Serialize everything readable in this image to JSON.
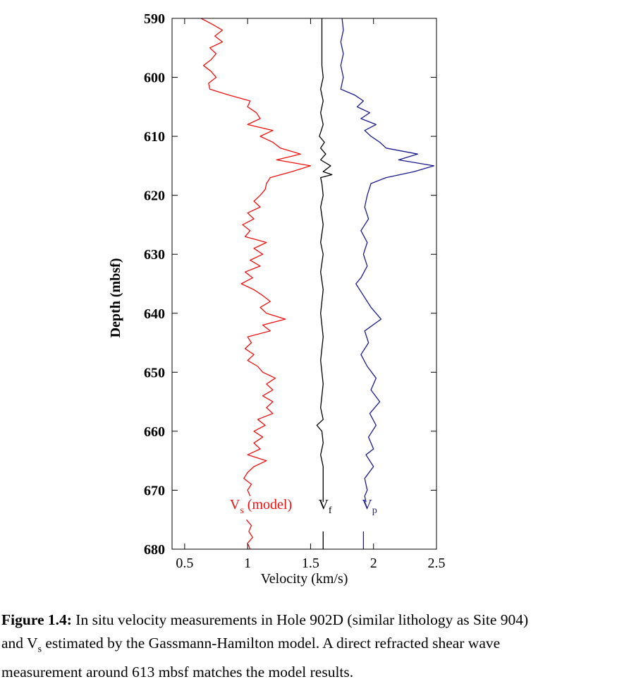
{
  "chart_data": {
    "type": "line",
    "xlabel": "Velocity (km/s)",
    "ylabel": "Depth (mbsf)",
    "xlim": [
      0.4,
      2.5
    ],
    "ylim": [
      590,
      680
    ],
    "y_inverted": true,
    "x_ticks": [
      "0.5",
      "1",
      "1.5",
      "2",
      "2.5"
    ],
    "y_ticks": [
      "590",
      "600",
      "610",
      "620",
      "630",
      "640",
      "650",
      "660",
      "670",
      "680"
    ],
    "grid": false,
    "series": [
      {
        "name": "Vs (model)",
        "label_main": "V",
        "label_sub": "s",
        "label_suffix": " (model)",
        "color": "#ee1111",
        "points": [
          [
            0.63,
            590
          ],
          [
            0.72,
            591
          ],
          [
            0.8,
            592
          ],
          [
            0.74,
            593
          ],
          [
            0.8,
            594
          ],
          [
            0.7,
            595
          ],
          [
            0.75,
            596
          ],
          [
            0.71,
            597
          ],
          [
            0.65,
            598
          ],
          [
            0.71,
            599
          ],
          [
            0.75,
            600
          ],
          [
            0.69,
            601
          ],
          [
            0.7,
            602
          ],
          [
            0.85,
            603
          ],
          [
            1.02,
            604
          ],
          [
            1.0,
            605
          ],
          [
            1.07,
            606
          ],
          [
            1.1,
            607
          ],
          [
            1.0,
            608
          ],
          [
            1.2,
            609
          ],
          [
            1.1,
            610
          ],
          [
            1.2,
            611
          ],
          [
            1.26,
            612
          ],
          [
            1.42,
            613
          ],
          [
            1.23,
            614
          ],
          [
            1.5,
            615
          ],
          [
            1.35,
            616
          ],
          [
            1.18,
            617
          ],
          [
            1.15,
            618
          ],
          [
            1.14,
            619
          ],
          [
            1.1,
            620
          ],
          [
            1.05,
            621
          ],
          [
            1.1,
            622
          ],
          [
            1.0,
            623
          ],
          [
            1.05,
            624
          ],
          [
            0.96,
            625
          ],
          [
            1.02,
            626
          ],
          [
            0.98,
            627
          ],
          [
            1.15,
            628
          ],
          [
            1.05,
            629
          ],
          [
            1.12,
            630
          ],
          [
            1.02,
            631
          ],
          [
            1.1,
            632
          ],
          [
            0.98,
            633
          ],
          [
            1.04,
            634
          ],
          [
            0.95,
            635
          ],
          [
            1.05,
            636
          ],
          [
            1.12,
            637
          ],
          [
            1.18,
            638
          ],
          [
            1.1,
            639
          ],
          [
            1.15,
            640
          ],
          [
            1.3,
            641
          ],
          [
            1.12,
            642
          ],
          [
            1.18,
            643
          ],
          [
            1.0,
            644
          ],
          [
            1.03,
            645
          ],
          [
            0.98,
            646
          ],
          [
            1.05,
            647
          ],
          [
            1.0,
            648
          ],
          [
            1.08,
            649
          ],
          [
            1.12,
            650
          ],
          [
            1.22,
            651
          ],
          [
            1.15,
            652
          ],
          [
            1.2,
            653
          ],
          [
            1.12,
            654
          ],
          [
            1.2,
            655
          ],
          [
            1.15,
            656
          ],
          [
            1.2,
            657
          ],
          [
            1.08,
            658
          ],
          [
            1.14,
            659
          ],
          [
            1.05,
            660
          ],
          [
            1.12,
            661
          ],
          [
            1.05,
            662
          ],
          [
            1.1,
            663
          ],
          [
            1.0,
            664
          ],
          [
            1.15,
            665
          ],
          [
            1.05,
            666
          ],
          [
            1.0,
            667
          ],
          [
            0.97,
            668
          ],
          [
            1.03,
            669
          ],
          [
            1.0,
            670
          ],
          [
            1.02,
            671
          ],
          [
            null,
            672
          ],
          [
            0.99,
            675
          ],
          [
            1.03,
            676
          ],
          [
            1.01,
            677
          ],
          [
            1.04,
            678
          ],
          [
            1.0,
            679
          ],
          [
            1.02,
            680
          ]
        ]
      },
      {
        "name": "Vf",
        "label_main": "V",
        "label_sub": "f",
        "label_suffix": "",
        "color": "#000000",
        "points": [
          [
            1.59,
            590
          ],
          [
            1.59,
            598
          ],
          [
            1.6,
            600
          ],
          [
            1.58,
            602
          ],
          [
            1.6,
            604
          ],
          [
            1.58,
            606
          ],
          [
            1.6,
            608
          ],
          [
            1.57,
            610
          ],
          [
            1.61,
            611
          ],
          [
            1.58,
            612
          ],
          [
            1.62,
            613
          ],
          [
            1.58,
            614
          ],
          [
            1.66,
            615
          ],
          [
            1.6,
            616
          ],
          [
            1.67,
            616.5
          ],
          [
            1.58,
            617
          ],
          [
            1.59,
            618
          ],
          [
            1.6,
            620
          ],
          [
            1.58,
            622
          ],
          [
            1.6,
            625
          ],
          [
            1.58,
            628
          ],
          [
            1.6,
            630
          ],
          [
            1.58,
            633
          ],
          [
            1.6,
            636
          ],
          [
            1.58,
            640
          ],
          [
            1.6,
            644
          ],
          [
            1.58,
            648
          ],
          [
            1.6,
            652
          ],
          [
            1.58,
            656
          ],
          [
            1.6,
            658
          ],
          [
            1.55,
            659
          ],
          [
            1.59,
            660
          ],
          [
            1.6,
            662
          ],
          [
            1.58,
            664
          ],
          [
            1.6,
            666
          ],
          [
            1.6,
            672
          ],
          [
            null,
            673
          ],
          [
            1.6,
            677
          ],
          [
            1.6,
            680
          ]
        ]
      },
      {
        "name": "Vp",
        "label_main": "V",
        "label_sub": "p",
        "label_suffix": "",
        "color": "#1a1a8c",
        "points": [
          [
            1.75,
            590
          ],
          [
            1.76,
            592
          ],
          [
            1.74,
            594
          ],
          [
            1.76,
            596
          ],
          [
            1.74,
            598
          ],
          [
            1.76,
            600
          ],
          [
            1.74,
            602
          ],
          [
            1.85,
            603
          ],
          [
            1.92,
            604
          ],
          [
            1.87,
            605
          ],
          [
            1.97,
            606
          ],
          [
            1.9,
            607
          ],
          [
            2.02,
            608
          ],
          [
            1.93,
            609
          ],
          [
            1.98,
            610
          ],
          [
            2.05,
            611
          ],
          [
            2.1,
            612
          ],
          [
            2.35,
            613
          ],
          [
            2.2,
            614
          ],
          [
            2.48,
            615
          ],
          [
            2.32,
            616
          ],
          [
            2.1,
            617
          ],
          [
            1.98,
            618
          ],
          [
            1.95,
            620
          ],
          [
            1.93,
            622
          ],
          [
            1.96,
            624
          ],
          [
            1.9,
            626
          ],
          [
            1.95,
            628
          ],
          [
            1.92,
            630
          ],
          [
            1.95,
            632
          ],
          [
            1.9,
            634
          ],
          [
            1.86,
            635
          ],
          [
            1.92,
            637
          ],
          [
            1.98,
            639
          ],
          [
            2.06,
            641
          ],
          [
            1.93,
            643
          ],
          [
            1.96,
            645
          ],
          [
            1.9,
            647
          ],
          [
            1.95,
            649
          ],
          [
            2.02,
            651
          ],
          [
            1.98,
            653
          ],
          [
            2.05,
            655
          ],
          [
            1.97,
            657
          ],
          [
            2.02,
            659
          ],
          [
            1.96,
            661
          ],
          [
            2.0,
            663
          ],
          [
            1.94,
            664
          ],
          [
            2.0,
            666
          ],
          [
            1.93,
            668
          ],
          [
            1.95,
            670
          ],
          [
            1.93,
            671
          ],
          [
            1.94,
            672
          ],
          [
            null,
            673
          ],
          [
            1.92,
            677
          ],
          [
            1.92,
            680
          ]
        ]
      }
    ]
  },
  "caption": {
    "figure_label": "Figure 1.4:",
    "line1_text": " In situ velocity measurements in Hole 902D (similar lithology as Site 904)",
    "line2_prefix": "and V",
    "line2_sub": "s",
    "line2_text": " estimated by the Gassmann-Hamilton model. A direct refracted shear wave",
    "line3_text": "measurement around 613 mbsf matches the model results."
  }
}
